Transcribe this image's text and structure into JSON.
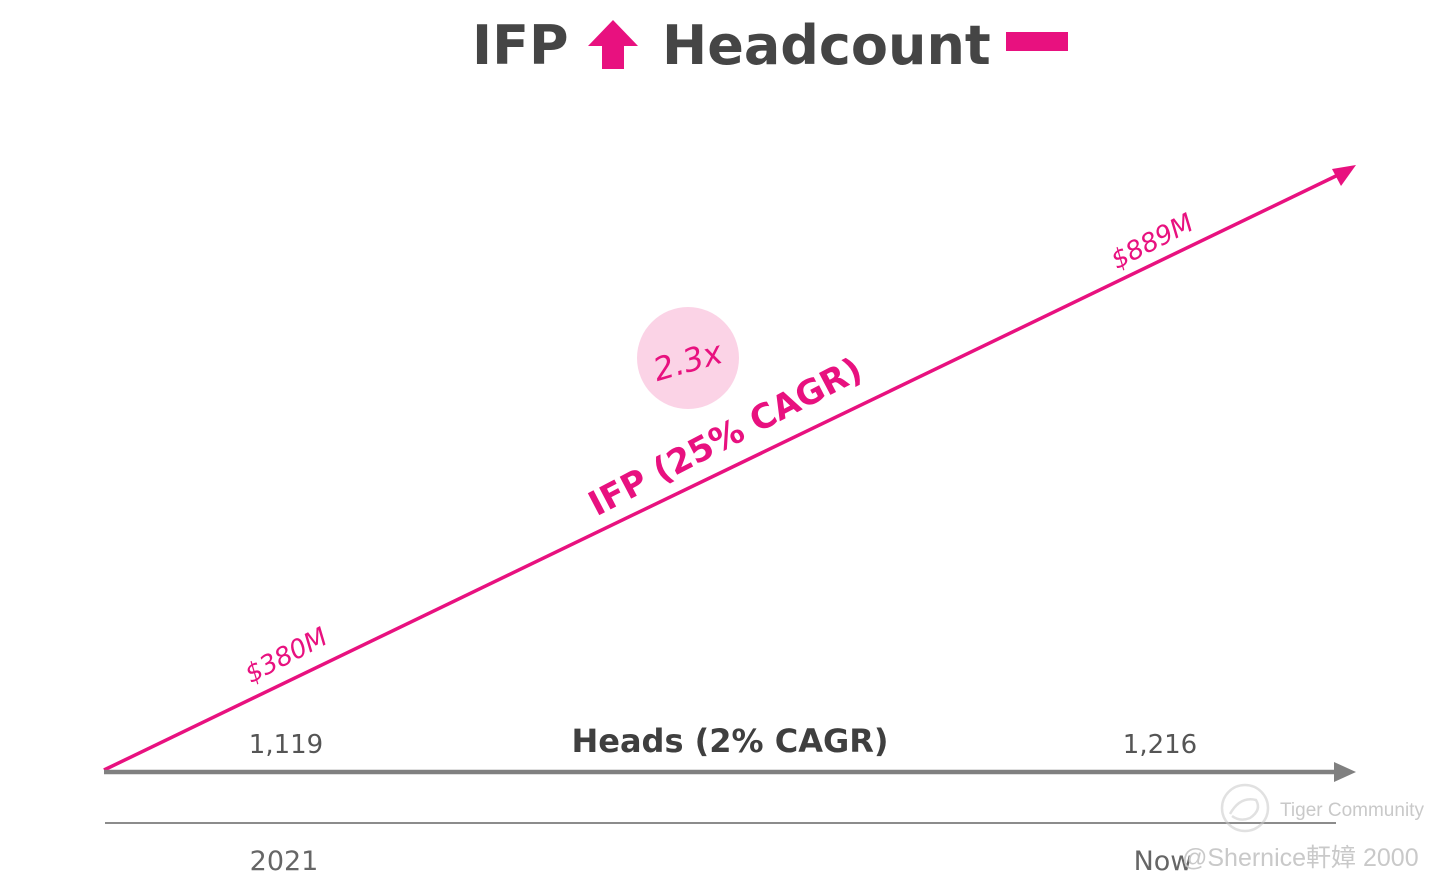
{
  "title": {
    "left": "IFP",
    "right": "Headcount",
    "left_icon": "up-arrow-icon",
    "right_icon": "flat-dash-icon"
  },
  "colors": {
    "accent": "#e8117f",
    "axis": "#7f7f7f",
    "badge": "#fbd3e6",
    "title": "#454545"
  },
  "chart_data": {
    "type": "line",
    "x": [
      "2021",
      "Now"
    ],
    "series": [
      {
        "name": "IFP (25% CAGR)",
        "values": [
          380,
          889
        ],
        "value_labels": [
          "$380M",
          "$889M"
        ]
      },
      {
        "name": "Heads (2% CAGR)",
        "values": [
          1119,
          1216
        ],
        "value_labels": [
          "1,119",
          "1,216"
        ]
      }
    ],
    "annotations": [
      "2.3x"
    ],
    "grid": false
  },
  "watermark": {
    "line1": "Tiger Community",
    "line2": "@Shernice軒嫜 2000"
  }
}
